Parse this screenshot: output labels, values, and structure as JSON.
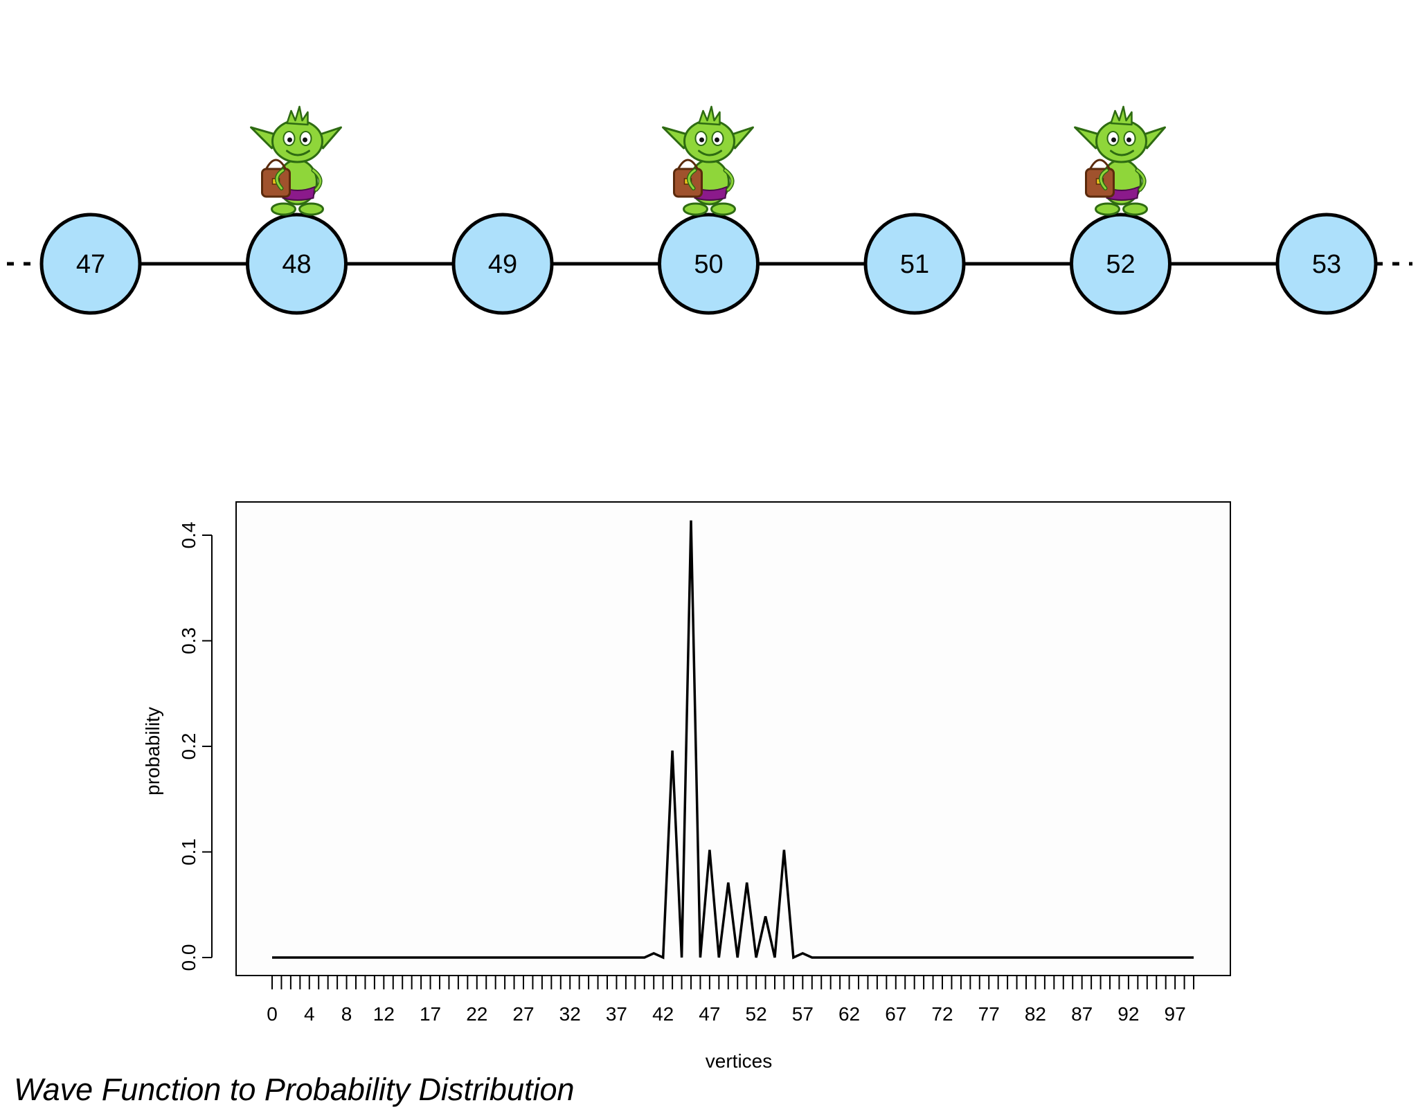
{
  "graph": {
    "nodes": [
      "47",
      "48",
      "49",
      "50",
      "51",
      "52",
      "53"
    ],
    "walker_nodes": [
      "48",
      "50",
      "52"
    ],
    "walker_icon": "goblin-walker-icon",
    "colors": {
      "node_fill": "#ade0fb",
      "edge": "#000000",
      "goblin_skin": "#8fd63a",
      "goblin_bag": "#a0522d",
      "goblin_shorts": "#8b1a8b"
    }
  },
  "chart_data": {
    "type": "line",
    "title": "",
    "xlabel": "vertices",
    "ylabel": "probability",
    "xlim": [
      0,
      99
    ],
    "ylim": [
      0,
      0.42
    ],
    "x_tick_labels": [
      "0",
      "4",
      "8",
      "12",
      "17",
      "22",
      "27",
      "32",
      "37",
      "42",
      "47",
      "52",
      "57",
      "62",
      "67",
      "72",
      "77",
      "82",
      "87",
      "92",
      "97"
    ],
    "y_ticks": [
      "0.0",
      "0.1",
      "0.2",
      "0.3",
      "0.4"
    ],
    "grid": false,
    "series": [
      {
        "x": [
          0,
          40,
          41,
          42,
          43,
          44,
          45,
          46,
          47,
          48,
          49,
          50,
          51,
          52,
          53,
          54,
          55,
          56,
          57,
          58,
          99
        ],
        "y": [
          0,
          0,
          0.004,
          0,
          0.196,
          0,
          0.414,
          0,
          0.102,
          0,
          0.071,
          0,
          0.071,
          0,
          0.039,
          0,
          0.102,
          0,
          0.004,
          0,
          0
        ],
        "color": "#000000"
      }
    ]
  },
  "caption": "Wave Function to Probability Distribution"
}
